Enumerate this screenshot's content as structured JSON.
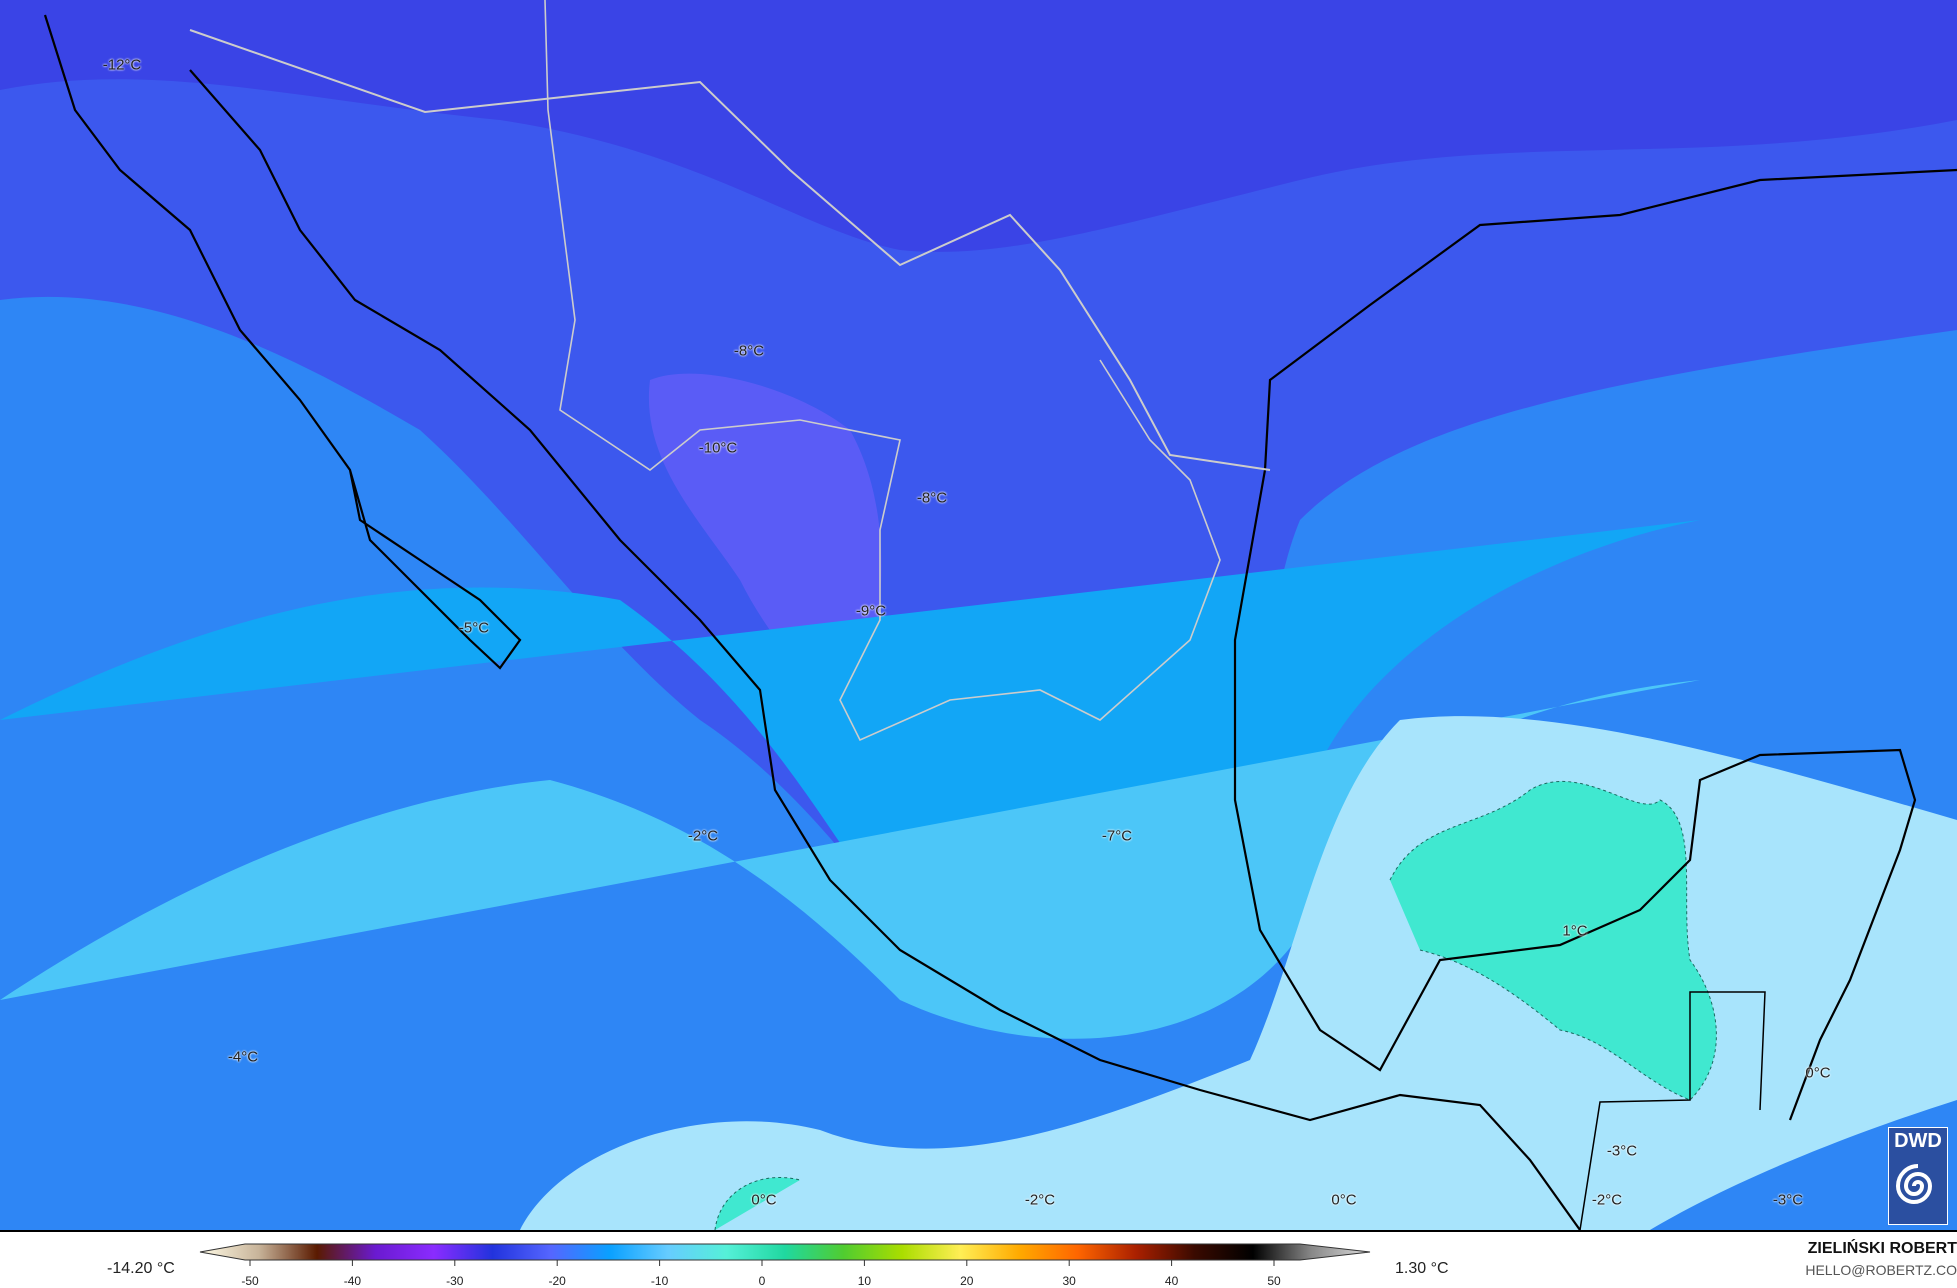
{
  "map": {
    "labels": [
      {
        "text": "-12°C"
      },
      {
        "text": "-8°C"
      },
      {
        "text": "-10°C"
      },
      {
        "text": "-8°C"
      },
      {
        "text": "-9°C"
      },
      {
        "text": "-5°C"
      },
      {
        "text": "-2°C"
      },
      {
        "text": "-7°C"
      },
      {
        "text": "1°C"
      },
      {
        "text": "0°C"
      },
      {
        "text": "-4°C"
      },
      {
        "text": "0°C"
      },
      {
        "text": "-2°C"
      },
      {
        "text": "0°C"
      },
      {
        "text": "-3°C"
      },
      {
        "text": "-2°C"
      },
      {
        "text": "-3°C"
      }
    ],
    "logo": "DWD"
  },
  "legend": {
    "min_value": "-14.20 °C",
    "max_value": "1.30 °C",
    "ticks": [
      "-50",
      "-40",
      "-30",
      "-20",
      "-10",
      "0",
      "10",
      "20",
      "30",
      "40",
      "50"
    ],
    "colors": [
      "#fffbe6",
      "#c8b49a",
      "#5a1a00",
      "#6a1ad0",
      "#8a2cff",
      "#2233dd",
      "#5566ff",
      "#0aa0ff",
      "#66ccff",
      "#55f0d8",
      "#20d8a0",
      "#50cc30",
      "#aadd00",
      "#ffee55",
      "#ffaa00",
      "#ff6600",
      "#aa2000",
      "#3a0a00",
      "#000000",
      "#888888",
      "#dddddd"
    ]
  },
  "credits": {
    "author": "ZIELIŃSKI ROBERT",
    "email": "HELLO@ROBERTZ.CO"
  }
}
